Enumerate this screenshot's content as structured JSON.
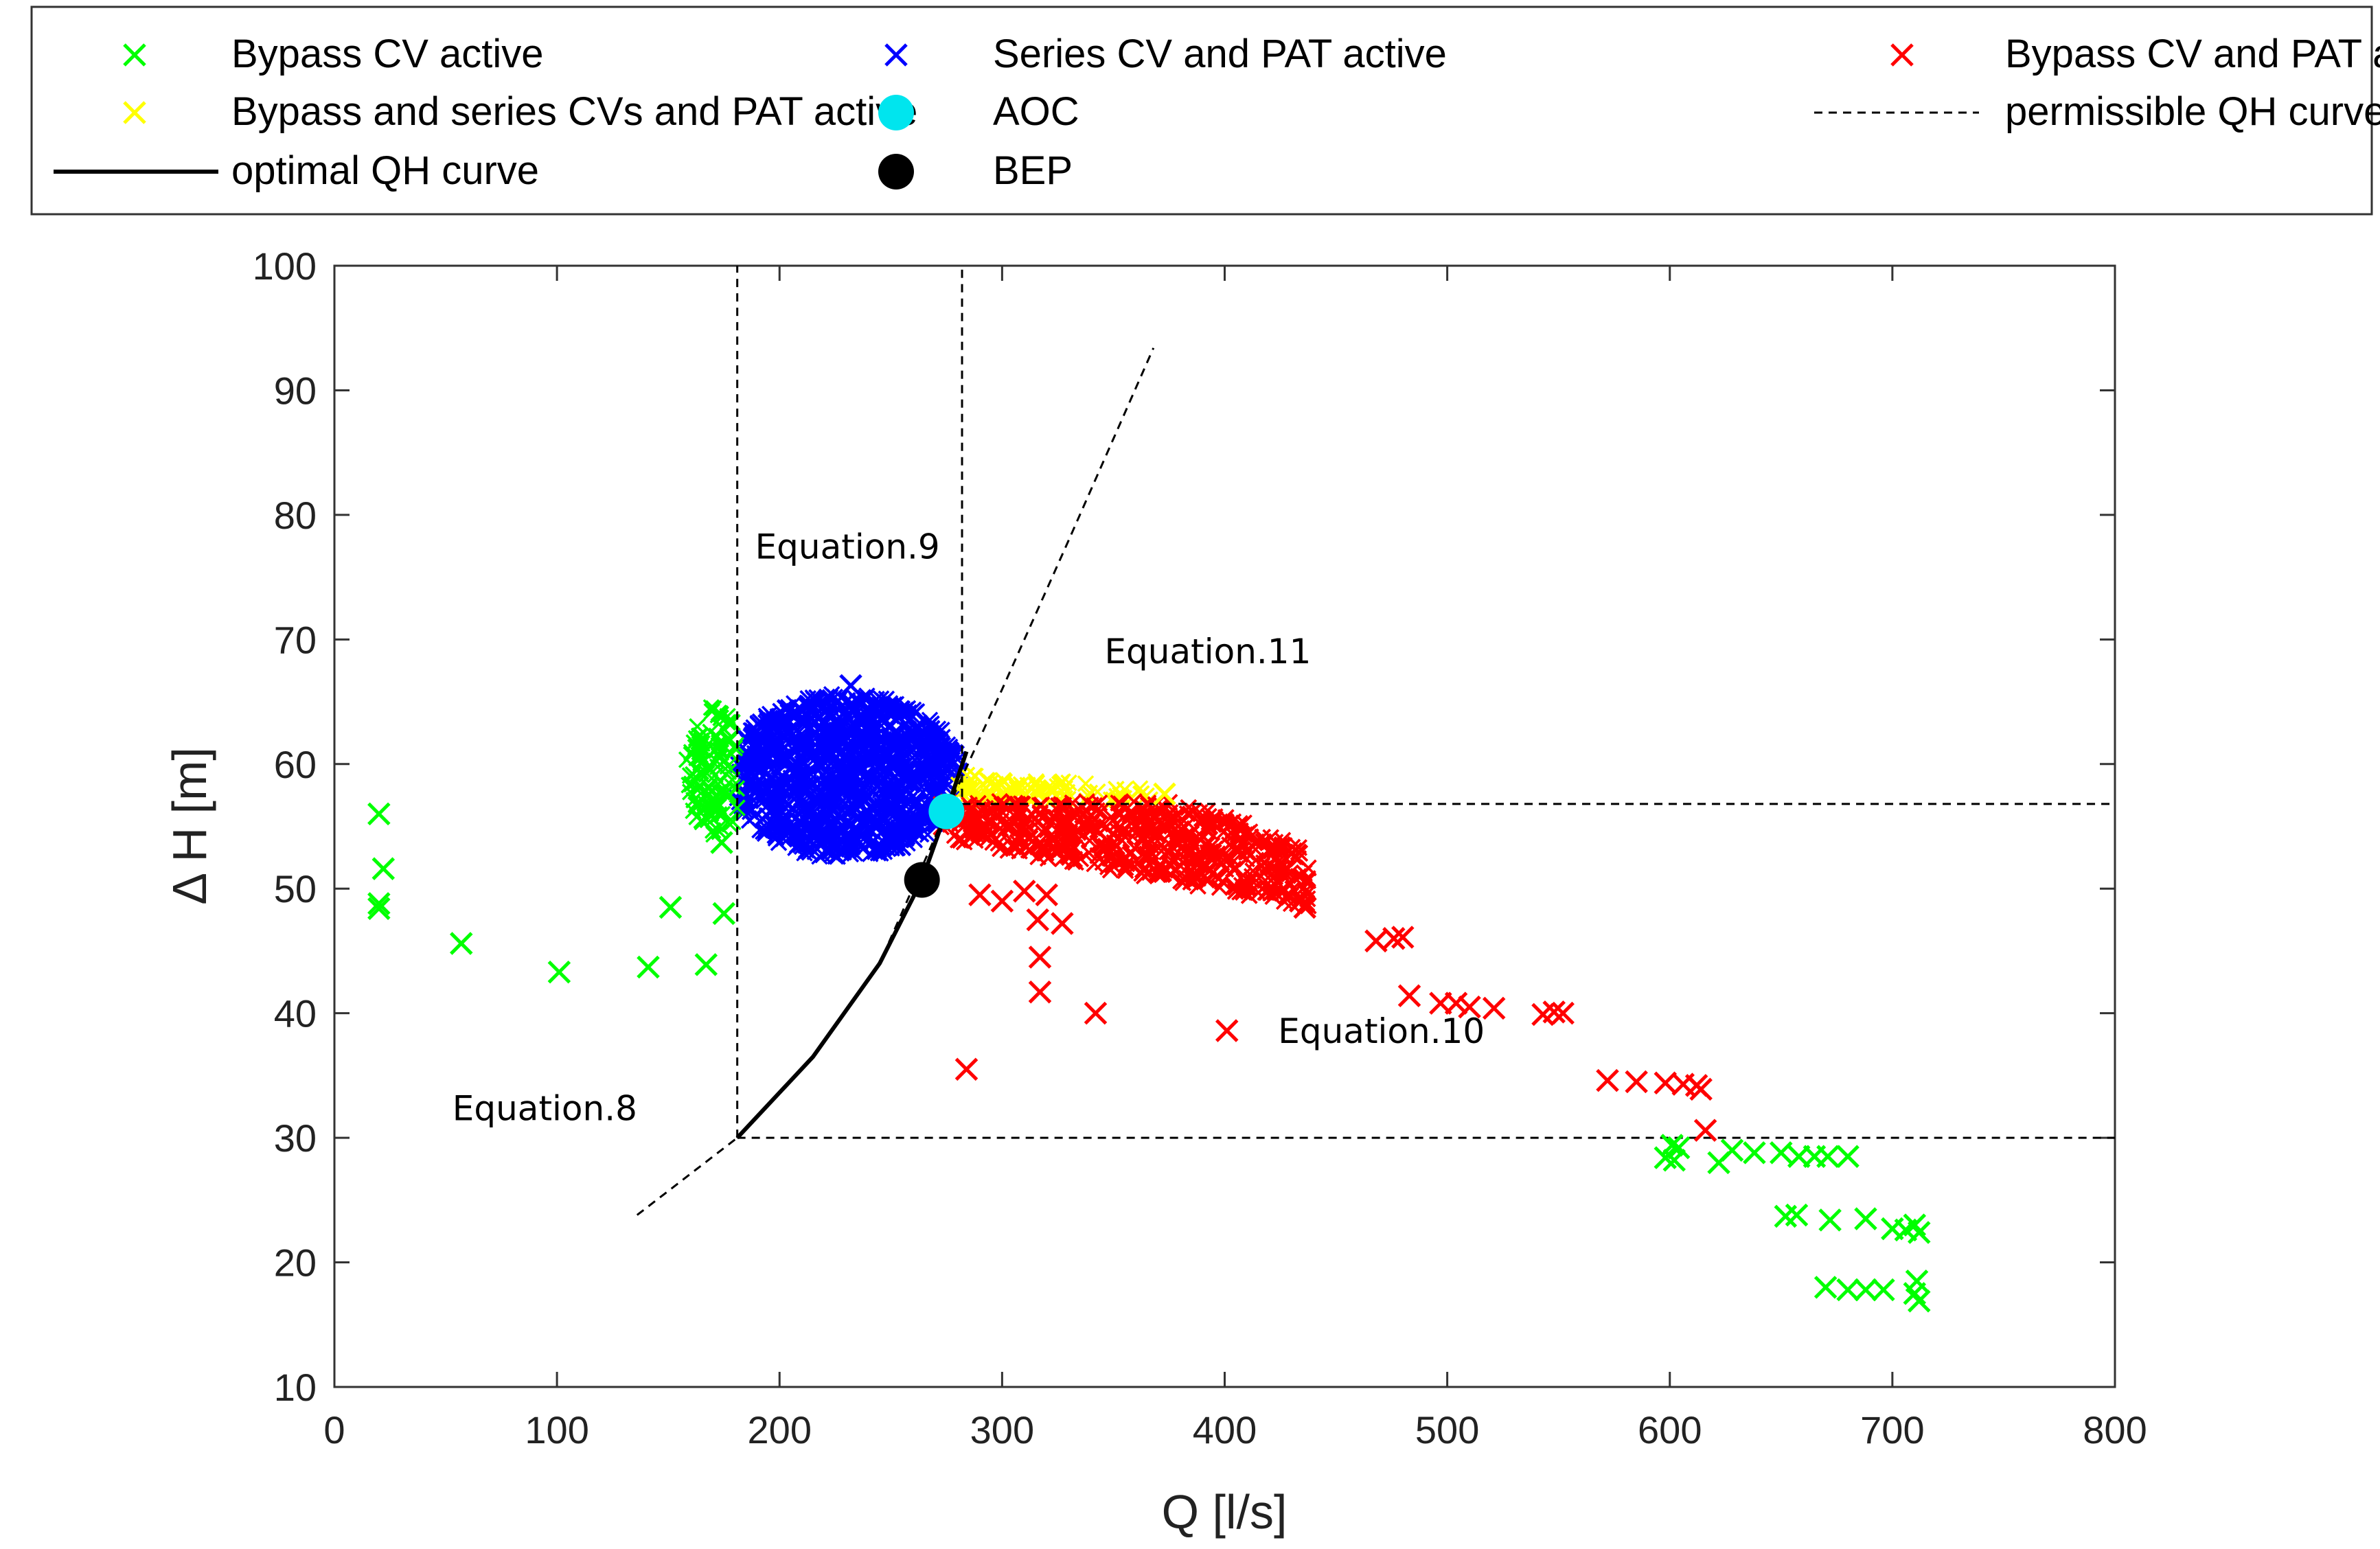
{
  "chart_data": {
    "type": "scatter",
    "xlabel": "Q [l/s]",
    "ylabel": "Δ H [m]",
    "xlim": [
      0,
      800
    ],
    "ylim": [
      10,
      100
    ],
    "xticks": [
      "0",
      "100",
      "200",
      "300",
      "400",
      "500",
      "600",
      "700",
      "800"
    ],
    "yticks": [
      "10",
      "20",
      "30",
      "40",
      "50",
      "60",
      "70",
      "80",
      "90",
      "100"
    ],
    "grid": false,
    "legend_position": "top",
    "legend": [
      {
        "label": "Bypass CV active",
        "marker": "x",
        "color": "#00ff00"
      },
      {
        "label": "Series CV and PAT active",
        "marker": "x",
        "color": "#0000ff"
      },
      {
        "label": "Bypass CV and PAT active",
        "marker": "x",
        "color": "#ff0000"
      },
      {
        "label": "Bypass and series CVs and PAT active",
        "marker": "x",
        "color": "#ffff00"
      },
      {
        "label": "AOC",
        "marker": "circle",
        "color": "#00e5ee"
      },
      {
        "label": "permissible QH curve",
        "marker": "dashed-line",
        "color": "#000000"
      },
      {
        "label": "optimal QH curve",
        "marker": "solid-line",
        "color": "#000000"
      },
      {
        "label": "BEP",
        "marker": "circle",
        "color": "#000000"
      }
    ],
    "annotations": [
      {
        "text": "Equation.8",
        "x": 53,
        "y": 31.4
      },
      {
        "text": "Equation.9",
        "x": 189,
        "y": 76.5
      },
      {
        "text": "Equation.10",
        "x": 424,
        "y": 37.6
      },
      {
        "text": "Equation.11",
        "x": 346,
        "y": 68.1
      }
    ],
    "series": [
      {
        "name": "Bypass CV active",
        "color": "#00ff00",
        "points": [
          [
            20,
            56
          ],
          [
            22,
            51.6
          ],
          [
            20,
            48.8
          ],
          [
            20,
            48.4
          ],
          [
            57,
            45.6
          ],
          [
            101,
            43.3
          ],
          [
            141,
            43.7
          ],
          [
            151,
            48.5
          ],
          [
            167,
            43.9
          ],
          [
            175,
            48
          ],
          [
            174,
            53.7
          ],
          [
            598,
            28.4
          ],
          [
            601,
            29.4
          ],
          [
            602,
            28.2
          ],
          [
            604,
            29.2
          ],
          [
            622,
            28
          ],
          [
            628,
            29
          ],
          [
            638,
            28.8
          ],
          [
            650,
            28.8
          ],
          [
            658,
            28.5
          ],
          [
            665,
            28.5
          ],
          [
            671,
            28.5
          ],
          [
            680,
            28.5
          ],
          [
            652,
            23.7
          ],
          [
            657,
            23.8
          ],
          [
            672,
            23.4
          ],
          [
            688,
            23.5
          ],
          [
            700,
            22.7
          ],
          [
            706,
            22.6
          ],
          [
            712,
            22.4
          ],
          [
            710,
            23
          ],
          [
            670,
            18
          ],
          [
            680,
            17.8
          ],
          [
            688,
            17.8
          ],
          [
            696,
            17.8
          ],
          [
            710,
            17.5
          ],
          [
            711,
            18.5
          ],
          [
            712,
            16.9
          ]
        ]
      },
      {
        "name": "Series CV and PAT active",
        "color": "#0000ff",
        "points": [
          [
            232,
            66.3
          ]
        ]
      },
      {
        "name": "Bypass CV and PAT active",
        "color": "#ff0000",
        "points": [
          [
            284,
            35.5
          ],
          [
            317,
            41.7
          ],
          [
            317,
            44.5
          ],
          [
            316,
            47.5
          ],
          [
            327,
            47.2
          ],
          [
            342,
            40
          ],
          [
            401,
            38.6
          ],
          [
            476,
            46
          ],
          [
            468,
            45.8
          ],
          [
            480,
            46.1
          ],
          [
            483,
            41.4
          ],
          [
            497,
            40.8
          ],
          [
            504,
            40.8
          ],
          [
            510,
            40.5
          ],
          [
            521,
            40.4
          ],
          [
            543,
            39.9
          ],
          [
            548,
            40.1
          ],
          [
            552,
            40
          ],
          [
            572,
            34.6
          ],
          [
            585,
            34.5
          ],
          [
            598,
            34.4
          ],
          [
            606,
            34.3
          ],
          [
            612,
            34.2
          ],
          [
            614,
            33.9
          ],
          [
            616,
            30.6
          ],
          [
            290,
            49.5
          ],
          [
            300,
            49
          ],
          [
            310,
            49.8
          ],
          [
            320,
            49.5
          ],
          [
            420,
            53
          ],
          [
            430,
            52.8
          ],
          [
            434,
            49
          ],
          [
            436,
            48.5
          ]
        ]
      },
      {
        "name": "Bypass and series CVs and PAT active",
        "color": "#ffff00",
        "points": [
          [
            373,
            57.6
          ]
        ]
      },
      {
        "name": "AOC",
        "color": "#00e5ee",
        "points": [
          [
            275,
            56.2
          ]
        ]
      },
      {
        "name": "BEP",
        "color": "#000000",
        "points": [
          [
            264,
            50.7
          ]
        ]
      }
    ],
    "regions": [
      {
        "name": "Bypass CV active",
        "color": "#00ff00",
        "range": "Q ~160-183 l/s, ΔH ~53-66 m"
      },
      {
        "name": "Series CV and PAT active",
        "color": "#0000ff",
        "range": "Q ~180-282 l/s, ΔH ~52-66 m"
      },
      {
        "name": "Bypass and series CVs and PAT active",
        "color": "#ffff00",
        "range": "Q ~278-370 l/s, ΔH ~56-59 m"
      },
      {
        "name": "Bypass CV and PAT active",
        "color": "#ff0000",
        "range": "Q ~268-440 l/s, ΔH ~48-57 m"
      }
    ],
    "lines": {
      "optimal_qh_curve": [
        [
          181,
          30
        ],
        [
          215,
          36.5
        ],
        [
          245,
          44
        ],
        [
          264,
          50.7
        ],
        [
          275,
          56.2
        ],
        [
          284,
          61
        ]
      ],
      "permissible_qh_curve": [
        [
          136,
          23.8
        ],
        [
          181,
          30
        ],
        [
          215,
          36.5
        ],
        [
          245,
          44
        ],
        [
          275,
          56.2
        ],
        [
          300,
          66
        ],
        [
          330,
          78
        ],
        [
          368,
          93.4
        ]
      ],
      "limits": {
        "q_min": 181,
        "q_max": 282,
        "h_min": 30,
        "h_max": 56.8
      }
    }
  }
}
